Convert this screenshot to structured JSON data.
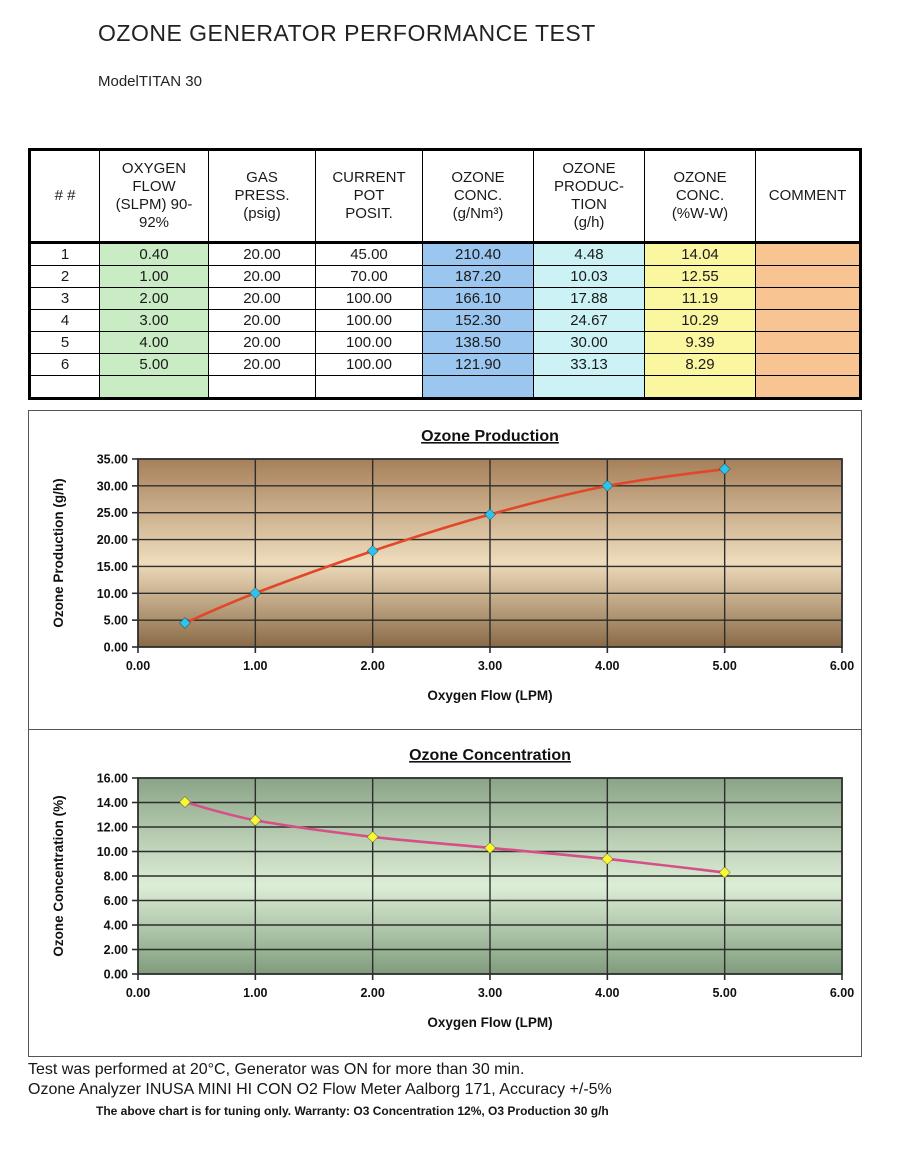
{
  "page": {
    "title": "OZONE GENERATOR PERFORMANCE TEST",
    "model_label": "Model",
    "model_value": "TITAN 30"
  },
  "table": {
    "headers": [
      "# #",
      "OXYGEN\nFLOW\n(SLPM) 90-\n92%",
      "GAS\nPRESS.\n(psig)",
      "CURRENT\nPOT\nPOSIT.",
      "OZONE\nCONC.\n(g/Nm³)",
      "OZONE\nPRODUC-\nTION\n(g/h)",
      "OZONE\nCONC.\n(%W-W)",
      "COMMENT"
    ],
    "rows": [
      [
        "1",
        "0.40",
        "20.00",
        "45.00",
        "210.40",
        "4.48",
        "14.04",
        ""
      ],
      [
        "2",
        "1.00",
        "20.00",
        "70.00",
        "187.20",
        "10.03",
        "12.55",
        ""
      ],
      [
        "3",
        "2.00",
        "20.00",
        "100.00",
        "166.10",
        "17.88",
        "11.19",
        ""
      ],
      [
        "4",
        "3.00",
        "20.00",
        "100.00",
        "152.30",
        "24.67",
        "10.29",
        ""
      ],
      [
        "5",
        "4.00",
        "20.00",
        "100.00",
        "138.50",
        "30.00",
        "9.39",
        ""
      ],
      [
        "6",
        "5.00",
        "20.00",
        "100.00",
        "121.90",
        "33.13",
        "8.29",
        ""
      ],
      [
        "",
        "",
        "",
        "",
        "",
        "",
        "",
        ""
      ]
    ],
    "colors": {
      "oxygen_flow": "#c9ecc5",
      "ozone_conc_gnm3": "#9ac6f0",
      "ozone_production": "#ccf2f5",
      "ozone_conc_ww": "#fbf6a0",
      "comment": "#f8c491"
    }
  },
  "chart_data": [
    {
      "type": "line",
      "title": "Ozone Production",
      "xlabel": "Oxygen Flow (LPM)",
      "ylabel": "Ozone Production (g/h)",
      "x": [
        0.4,
        1.0,
        2.0,
        3.0,
        4.0,
        5.0
      ],
      "y": [
        4.48,
        10.03,
        17.88,
        24.67,
        30.0,
        33.13
      ],
      "xlim": [
        0,
        6
      ],
      "ylim": [
        0,
        35
      ],
      "xtick_step": 1,
      "ytick_step": 5,
      "grid": true,
      "legend": "none",
      "line_color": "#e2472a",
      "marker_color": "#2cc3ee",
      "plot_bg": [
        "#a6805a",
        "#eedcbc",
        "#8a6a46"
      ]
    },
    {
      "type": "line",
      "title": "Ozone Concentration",
      "xlabel": "Oxygen Flow (LPM)",
      "ylabel": "Ozone Concentration (%)",
      "x": [
        0.4,
        1.0,
        2.0,
        3.0,
        4.0,
        5.0
      ],
      "y": [
        14.04,
        12.55,
        11.19,
        10.29,
        9.39,
        8.29
      ],
      "xlim": [
        0,
        6
      ],
      "ylim": [
        0,
        16
      ],
      "xtick_step": 1,
      "ytick_step": 2,
      "grid": true,
      "legend": "none",
      "line_color": "#d64f87",
      "marker_color": "#fbf832",
      "plot_bg": [
        "#8aa487",
        "#ddeed6",
        "#7f9c7c"
      ]
    }
  ],
  "footer": {
    "line1": "Test was performed at 20°C, Generator was ON for more than 30 min.",
    "line2": "Ozone Analyzer INUSA MINI HI CON O2 Flow Meter Aalborg 171, Accuracy +/-5%",
    "line3": "The above chart is for tuning only. Warranty: O3 Concentration 12%, O3 Production 30 g/h"
  }
}
